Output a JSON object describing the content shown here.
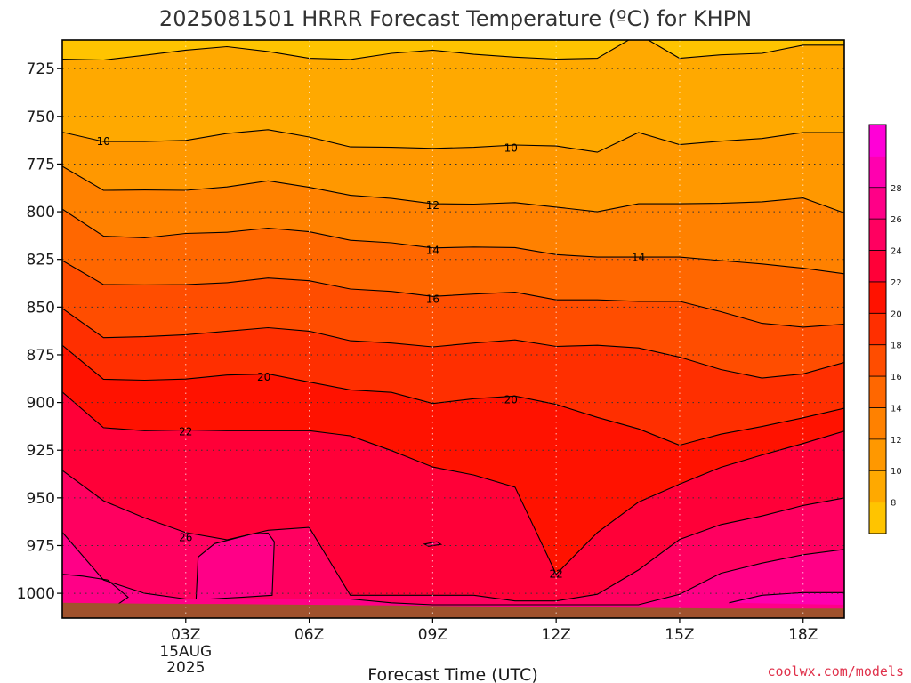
{
  "chart_data": {
    "type": "heatmap",
    "title": "2025081501 HRRR Forecast Temperature (ºC) for KHPN",
    "xlabel": "Forecast Time (UTC)",
    "ylabel": "",
    "x_ticks": [
      {
        "hour": 3,
        "label": "03Z",
        "extra": [
          "15AUG",
          "2025"
        ]
      },
      {
        "hour": 6,
        "label": "06Z"
      },
      {
        "hour": 9,
        "label": "09Z"
      },
      {
        "hour": 12,
        "label": "12Z"
      },
      {
        "hour": 15,
        "label": "15Z"
      },
      {
        "hour": 18,
        "label": "18Z"
      }
    ],
    "xlim": [
      0,
      19
    ],
    "y_ticks": [
      725,
      750,
      775,
      800,
      825,
      850,
      875,
      900,
      925,
      950,
      975,
      1000
    ],
    "ylim": [
      710,
      1013
    ],
    "grid": true,
    "colorbar": {
      "labels": [
        8,
        10,
        12,
        14,
        16,
        18,
        20,
        22,
        24,
        26,
        28
      ],
      "levels": [
        6,
        8,
        10,
        12,
        14,
        16,
        18,
        20,
        22,
        24,
        26,
        28,
        30
      ],
      "colors": [
        "#FFC400",
        "#FFA900",
        "#FF9800",
        "#FF8100",
        "#FF6700",
        "#FF4D00",
        "#FF2F00",
        "#FF1200",
        "#FF0038",
        "#FF0060",
        "#FF0087",
        "#FF00AF",
        "#FF00D7"
      ]
    },
    "hours": [
      0,
      1,
      2,
      3,
      4,
      5,
      6,
      7,
      8,
      9,
      10,
      11,
      12,
      13,
      14,
      15,
      16,
      17,
      18,
      19
    ],
    "contours": [
      {
        "level": 8,
        "p": [
          720.0,
          720.5,
          718.0,
          715.3,
          713.5,
          716.0,
          719.6,
          720.2,
          717.0,
          715.3,
          717.5,
          719.0,
          720.0,
          719.6,
          707.0,
          719.6,
          717.8,
          717.0,
          712.7,
          712.7
        ]
      },
      {
        "level": 10,
        "p": [
          758.3,
          763.2,
          763.2,
          762.6,
          759.0,
          757.0,
          760.8,
          766.0,
          766.2,
          766.8,
          766.2,
          765.0,
          765.5,
          768.8,
          758.5,
          764.8,
          763.0,
          761.6,
          758.5,
          758.5
        ]
      },
      {
        "level": 12,
        "p": [
          776.2,
          788.8,
          788.6,
          788.8,
          787.0,
          783.8,
          787.2,
          791.4,
          793.0,
          795.8,
          796.0,
          795.2,
          797.6,
          800.0,
          795.8,
          795.8,
          795.6,
          794.8,
          792.8,
          800.6
        ]
      },
      {
        "level": 14,
        "p": [
          798.6,
          812.8,
          813.7,
          811.4,
          810.8,
          808.6,
          810.5,
          815.0,
          816.3,
          819.0,
          818.5,
          818.8,
          822.5,
          823.8,
          823.8,
          823.8,
          825.6,
          827.4,
          829.6,
          832.5
        ]
      },
      {
        "level": 16,
        "p": [
          825.6,
          838.2,
          838.4,
          838.2,
          837.2,
          834.8,
          836.2,
          840.5,
          841.8,
          844.4,
          843.2,
          842.2,
          846.2,
          846.2,
          847.0,
          847.0,
          852.4,
          858.5,
          860.5,
          859.0
        ]
      },
      {
        "level": 18,
        "p": [
          850.7,
          866.0,
          865.5,
          864.5,
          862.6,
          860.8,
          862.6,
          867.6,
          868.8,
          870.8,
          868.8,
          867.2,
          870.6,
          870.0,
          871.4,
          876.2,
          882.7,
          887.2,
          885.0,
          879.0
        ]
      },
      {
        "level": 20,
        "p": [
          870.0,
          887.8,
          888.3,
          887.7,
          885.6,
          885.0,
          889.3,
          893.4,
          894.7,
          900.5,
          898.0,
          896.6,
          901.0,
          907.8,
          913.8,
          922.4,
          916.6,
          912.6,
          908.0,
          903.0
        ]
      },
      {
        "level": 22,
        "p": [
          894.5,
          913.2,
          914.8,
          914.4,
          914.8,
          914.8,
          914.8,
          917.5,
          925.2,
          933.8,
          938.0,
          944.4,
          990.0,
          968.2,
          952.2,
          942.8,
          934.0,
          927.5,
          921.5,
          915.0
        ]
      },
      {
        "level": 24,
        "p": [
          935.6,
          951.5,
          960.5,
          968.2,
          972.0,
          967.0,
          965.5,
          1001.0,
          1001.0,
          1001.0,
          1001.0,
          1004.0,
          1004.0,
          1000.5,
          987.8,
          971.8,
          964.0,
          959.5,
          954.0,
          950.0
        ]
      },
      {
        "level": 26,
        "p": [
          968.0,
          993.0,
          1000.0,
          1003.0,
          1003.0,
          1003.0,
          1003.0,
          1003.0,
          1005.0,
          1006.0,
          1006.0,
          1006.0,
          1006.0,
          1006.0,
          1006.0,
          1000.5,
          989.5,
          984.2,
          979.8,
          977.0
        ]
      }
    ],
    "closed_contours": [
      {
        "level": 26,
        "points": [
          [
            3.25,
            1003
          ],
          [
            3.3,
            981
          ],
          [
            3.7,
            974
          ],
          [
            4.6,
            969
          ],
          [
            5.0,
            968.5
          ],
          [
            5.15,
            973
          ],
          [
            5.1,
            1001
          ],
          [
            4.4,
            1002
          ],
          [
            3.6,
            1003
          ]
        ]
      },
      {
        "level": 26,
        "points": [
          [
            0,
            1008
          ],
          [
            1.2,
            1008
          ],
          [
            1.6,
            1002
          ],
          [
            1.1,
            993
          ],
          [
            0.5,
            991
          ],
          [
            0,
            990
          ]
        ]
      },
      {
        "level": 24,
        "points": [
          [
            8.8,
            974.2
          ],
          [
            9.1,
            973.0
          ],
          [
            9.2,
            974.4
          ],
          [
            8.9,
            975.4
          ]
        ]
      },
      {
        "level": 28,
        "points": [
          [
            16.2,
            1005
          ],
          [
            17,
            1001
          ],
          [
            18,
            999.6
          ],
          [
            19,
            999.6
          ],
          [
            19,
            1006
          ]
        ]
      }
    ],
    "contour_labels": [
      {
        "text": "10",
        "hour": 1.0,
        "p": 762.8
      },
      {
        "text": "10",
        "hour": 10.9,
        "p": 766.4
      },
      {
        "text": "12",
        "hour": 9.0,
        "p": 796.5
      },
      {
        "text": "14",
        "hour": 9.0,
        "p": 820.0
      },
      {
        "text": "14",
        "hour": 14.0,
        "p": 823.8
      },
      {
        "text": "16",
        "hour": 9.0,
        "p": 845.6
      },
      {
        "text": "20",
        "hour": 4.9,
        "p": 886.5
      },
      {
        "text": "20",
        "hour": 10.9,
        "p": 898.4
      },
      {
        "text": "22",
        "hour": 3.0,
        "p": 915.2
      },
      {
        "text": "26",
        "hour": 3.0,
        "p": 970.6
      },
      {
        "text": "22",
        "hour": 12.0,
        "p": 989.8
      }
    ],
    "surface": {
      "color": "#A0522D",
      "p": [
        1005.0,
        1005.2,
        1005.4,
        1005.6,
        1005.6,
        1005.8,
        1006.0,
        1006.2,
        1006.4,
        1006.6,
        1006.8,
        1007.0,
        1007.2,
        1007.4,
        1007.6,
        1007.8,
        1008.0,
        1008.0,
        1008.0,
        1008.0
      ]
    }
  },
  "credit": "coolwx.com/models"
}
